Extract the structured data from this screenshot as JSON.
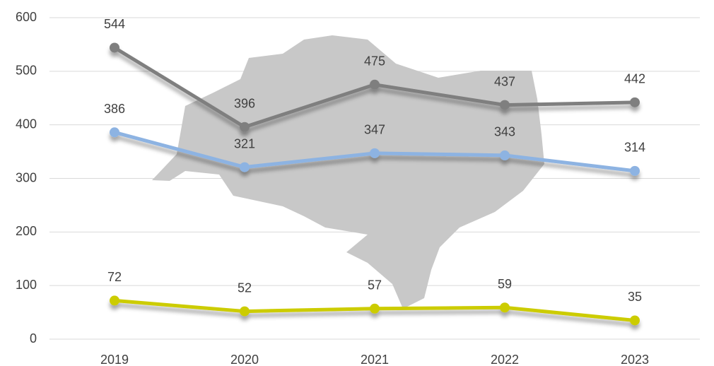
{
  "chart_data": {
    "type": "line",
    "categories": [
      "2019",
      "2020",
      "2021",
      "2022",
      "2023"
    ],
    "series": [
      {
        "color": "#7f7f7f",
        "values": [
          544,
          396,
          475,
          437,
          442
        ]
      },
      {
        "color": "#8db3e2",
        "values": [
          386,
          321,
          347,
          343,
          314
        ]
      },
      {
        "color": "#cccc00",
        "values": [
          72,
          52,
          57,
          59,
          35
        ]
      }
    ],
    "ylim": [
      0,
      600
    ],
    "yticks": [
      0,
      100,
      200,
      300,
      400,
      500,
      600
    ],
    "grid": true
  }
}
